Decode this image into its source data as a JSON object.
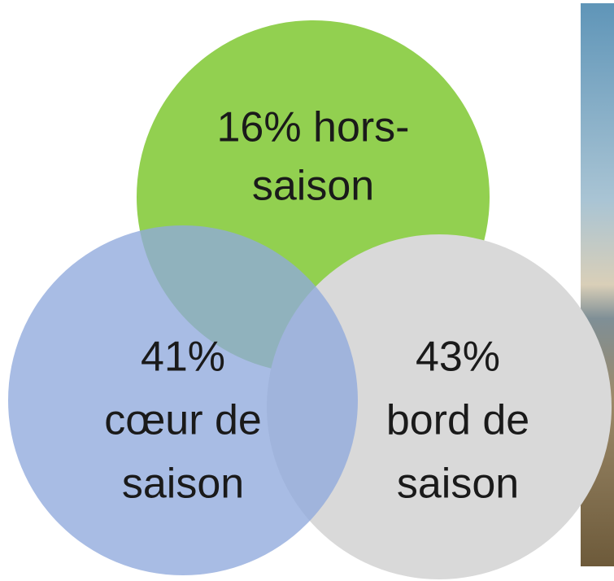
{
  "nodes": [
    {
      "lines": [
        "16% hors-",
        "saison"
      ]
    },
    {
      "lines": [
        "41%",
        "cœur de",
        "saison"
      ]
    },
    {
      "lines": [
        "43%",
        "bord de",
        "saison"
      ]
    }
  ]
}
